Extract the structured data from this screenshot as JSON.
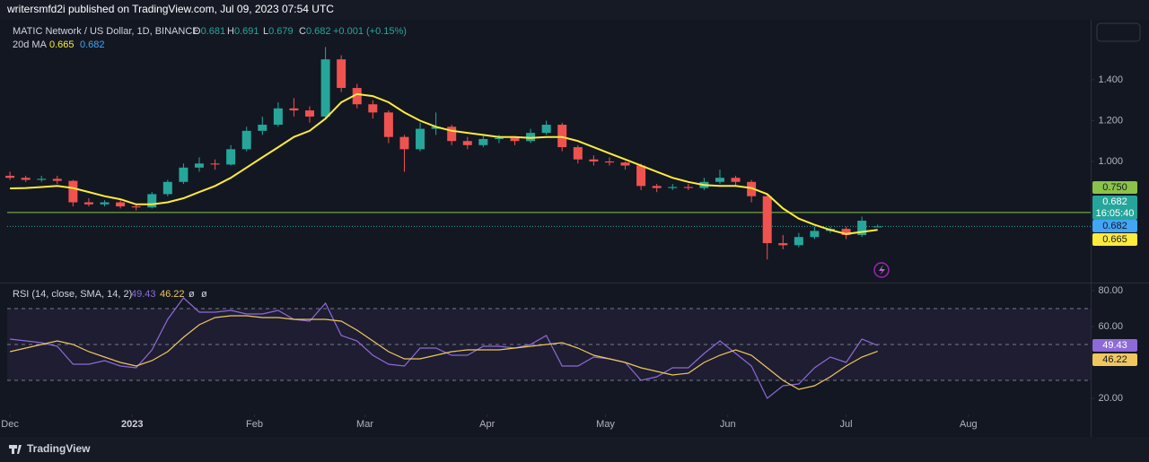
{
  "header": {
    "text": "writersmfd2i published on TradingView.com, Jul 09, 2023 07:54 UTC"
  },
  "footer": {
    "brand": "TradingView"
  },
  "chart_data": [
    {
      "type": "candlestick",
      "title": "MATIC Network / US Dollar, 1D, BINANCE",
      "ohlc_letters": [
        "O",
        "H",
        "L",
        "C"
      ],
      "change_label": "+0.001 (+0.15%)",
      "countdown": "16:05:40",
      "up_color": "#26a69a",
      "down_color": "#ef5350",
      "x": [
        0,
        4,
        8,
        12,
        16,
        20,
        24,
        28,
        32,
        36,
        40,
        44,
        48,
        52,
        56,
        60,
        64,
        68,
        72,
        76,
        80,
        84,
        88,
        92,
        96,
        100,
        104,
        108,
        112,
        116,
        120,
        124,
        128,
        132,
        136,
        140,
        144,
        148,
        152,
        156,
        160,
        164,
        168,
        172,
        176,
        180,
        184,
        188,
        192,
        196,
        200,
        204,
        208,
        212,
        216,
        220
      ],
      "open": [
        0.93,
        0.92,
        0.91,
        0.915,
        0.905,
        0.8,
        0.79,
        0.8,
        0.78,
        0.775,
        0.84,
        0.9,
        0.97,
        0.99,
        0.985,
        1.06,
        1.15,
        1.18,
        1.26,
        1.25,
        1.22,
        1.5,
        1.36,
        1.28,
        1.24,
        1.12,
        1.06,
        1.16,
        1.17,
        1.1,
        1.08,
        1.11,
        1.115,
        1.1,
        1.14,
        1.18,
        1.07,
        1.01,
        1.0,
        0.995,
        0.98,
        0.88,
        0.87,
        0.875,
        0.87,
        0.9,
        0.92,
        0.9,
        0.83,
        0.6,
        0.59,
        0.63,
        0.66,
        0.67,
        0.64,
        0.681
      ],
      "high": [
        0.95,
        0.93,
        0.93,
        0.93,
        0.91,
        0.82,
        0.81,
        0.81,
        0.79,
        0.85,
        0.91,
        0.99,
        1.02,
        1.01,
        1.08,
        1.17,
        1.22,
        1.29,
        1.31,
        1.27,
        1.56,
        1.52,
        1.38,
        1.3,
        1.25,
        1.13,
        1.19,
        1.24,
        1.18,
        1.12,
        1.13,
        1.13,
        1.12,
        1.16,
        1.2,
        1.19,
        1.08,
        1.03,
        1.02,
        1.0,
        0.99,
        0.89,
        0.89,
        0.89,
        0.92,
        0.96,
        0.93,
        0.91,
        0.84,
        0.64,
        0.65,
        0.68,
        0.68,
        0.68,
        0.73,
        0.691
      ],
      "low": [
        0.91,
        0.9,
        0.9,
        0.89,
        0.78,
        0.78,
        0.78,
        0.77,
        0.76,
        0.77,
        0.83,
        0.89,
        0.95,
        0.96,
        0.98,
        1.05,
        1.13,
        1.17,
        1.22,
        1.19,
        1.21,
        1.34,
        1.26,
        1.21,
        1.09,
        0.95,
        1.05,
        1.13,
        1.08,
        1.06,
        1.07,
        1.09,
        1.08,
        1.09,
        1.13,
        1.05,
        0.99,
        0.98,
        0.98,
        0.96,
        0.86,
        0.85,
        0.86,
        0.86,
        0.86,
        0.89,
        0.88,
        0.8,
        0.52,
        0.57,
        0.58,
        0.62,
        0.65,
        0.62,
        0.63,
        0.679
      ],
      "close": [
        0.92,
        0.91,
        0.915,
        0.905,
        0.8,
        0.79,
        0.8,
        0.78,
        0.775,
        0.84,
        0.9,
        0.97,
        0.99,
        0.985,
        1.06,
        1.15,
        1.18,
        1.26,
        1.25,
        1.22,
        1.5,
        1.36,
        1.28,
        1.24,
        1.12,
        1.06,
        1.16,
        1.17,
        1.1,
        1.08,
        1.11,
        1.115,
        1.1,
        1.14,
        1.18,
        1.07,
        1.01,
        1.0,
        0.995,
        0.98,
        0.88,
        0.87,
        0.875,
        0.87,
        0.9,
        0.92,
        0.9,
        0.83,
        0.6,
        0.59,
        0.63,
        0.66,
        0.67,
        0.64,
        0.71,
        0.682
      ],
      "overlays": [
        {
          "name": "20d MA",
          "color": "#ffeb3b",
          "values": [
            0.868,
            0.87,
            0.875,
            0.88,
            0.87,
            0.85,
            0.83,
            0.815,
            0.79,
            0.79,
            0.8,
            0.82,
            0.85,
            0.88,
            0.92,
            0.97,
            1.02,
            1.07,
            1.12,
            1.15,
            1.21,
            1.29,
            1.33,
            1.32,
            1.29,
            1.24,
            1.2,
            1.17,
            1.15,
            1.14,
            1.13,
            1.12,
            1.12,
            1.115,
            1.12,
            1.12,
            1.1,
            1.07,
            1.04,
            1.01,
            0.98,
            0.95,
            0.92,
            0.9,
            0.885,
            0.88,
            0.88,
            0.87,
            0.84,
            0.77,
            0.72,
            0.69,
            0.665,
            0.645,
            0.655,
            0.665
          ]
        }
      ],
      "horizontal_lines": [
        {
          "value": 0.75,
          "label": "0.750",
          "color": "#8bc34a"
        }
      ],
      "xlim": [
        -0.7,
        274
      ],
      "ylim": [
        0.407,
        1.694
      ],
      "yticks": [
        {
          "value": 1,
          "label": "1.000"
        },
        {
          "value": 1.2,
          "label": "1.200"
        },
        {
          "value": 1.4,
          "label": "1.400"
        }
      ]
    },
    {
      "type": "line",
      "title": "RSI (14, close, SMA, 14, 2)",
      "extra_labels": [
        "ø",
        "ø"
      ],
      "x": [
        0,
        4,
        8,
        12,
        16,
        20,
        24,
        28,
        32,
        36,
        40,
        44,
        48,
        52,
        56,
        60,
        64,
        68,
        72,
        76,
        80,
        84,
        88,
        92,
        96,
        100,
        104,
        108,
        112,
        116,
        120,
        124,
        128,
        132,
        136,
        140,
        144,
        148,
        152,
        156,
        160,
        164,
        168,
        172,
        176,
        180,
        184,
        188,
        192,
        196,
        200,
        204,
        208,
        212,
        216,
        220
      ],
      "series": [
        {
          "color": "#8e6ad8",
          "values": [
            53,
            52,
            51,
            49,
            39,
            39,
            41,
            38,
            37,
            47,
            64,
            76,
            68,
            68,
            69,
            67,
            67,
            69,
            64,
            63,
            73,
            55,
            52,
            44,
            39,
            38,
            48,
            48,
            44,
            44,
            49,
            49,
            48,
            50,
            55,
            38,
            38,
            43,
            42,
            40,
            30,
            32,
            37,
            37,
            45,
            52,
            45,
            38,
            20,
            27,
            28,
            37,
            43,
            40,
            53,
            49.43
          ]
        },
        {
          "color": "#f0c75e",
          "values": [
            46,
            48,
            50,
            52,
            50,
            46,
            43,
            40,
            38,
            41,
            46,
            54,
            61,
            65,
            66,
            66,
            65,
            65,
            64,
            64,
            64,
            63,
            58,
            52,
            46,
            42,
            42,
            44,
            46,
            47,
            47,
            47,
            48,
            49,
            50,
            51,
            48,
            44,
            42,
            40,
            37,
            35,
            33,
            34,
            40,
            44,
            47,
            44,
            37,
            30,
            25,
            27,
            32,
            38,
            43,
            46.22
          ]
        }
      ],
      "hlines": [
        70,
        50,
        30
      ],
      "xlim": [
        -0.7,
        274
      ],
      "ylim": [
        11,
        84
      ],
      "yticks": [
        {
          "value": 20,
          "label": "20.00"
        },
        {
          "value": 60,
          "label": "60.00"
        },
        {
          "value": 80,
          "label": "80.00"
        }
      ],
      "xticks": [
        {
          "value": 0,
          "label": "Dec"
        },
        {
          "value": 31,
          "label": "2023"
        },
        {
          "value": 62,
          "label": "Feb"
        },
        {
          "value": 90,
          "label": "Mar"
        },
        {
          "value": 121,
          "label": "Apr"
        },
        {
          "value": 151,
          "label": "May"
        },
        {
          "value": 182,
          "label": "Jun"
        },
        {
          "value": 212,
          "label": "Jul"
        },
        {
          "value": 243,
          "label": "Aug"
        }
      ]
    }
  ]
}
